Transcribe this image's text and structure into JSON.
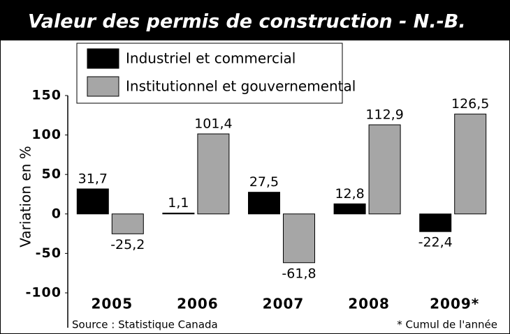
{
  "chart_data": {
    "type": "bar",
    "title": "Valeur des permis de construction - N.-B.",
    "categories": [
      "2005",
      "2006",
      "2007",
      "2008",
      "2009*"
    ],
    "series": [
      {
        "name": "Industriel et commercial",
        "color": "#000000",
        "values": [
          31.7,
          1.1,
          27.5,
          12.8,
          -22.4
        ],
        "value_labels": [
          "31,7",
          "1,1",
          "27,5",
          "12,8",
          "-22,4"
        ]
      },
      {
        "name": "Institutionnel et gouvernemental",
        "color": "#a6a6a6",
        "values": [
          -25.2,
          101.4,
          -61.8,
          112.9,
          126.5
        ],
        "value_labels": [
          "-25,2",
          "101,4",
          "-61,8",
          "112,9",
          "126,5"
        ]
      }
    ],
    "ylabel": "Variation en %",
    "ylim": [
      -100,
      150
    ],
    "yticks": [
      -100,
      -50,
      0,
      50,
      100,
      150
    ],
    "source": "Source : Statistique Canada",
    "note": "* Cumul de l'année"
  }
}
